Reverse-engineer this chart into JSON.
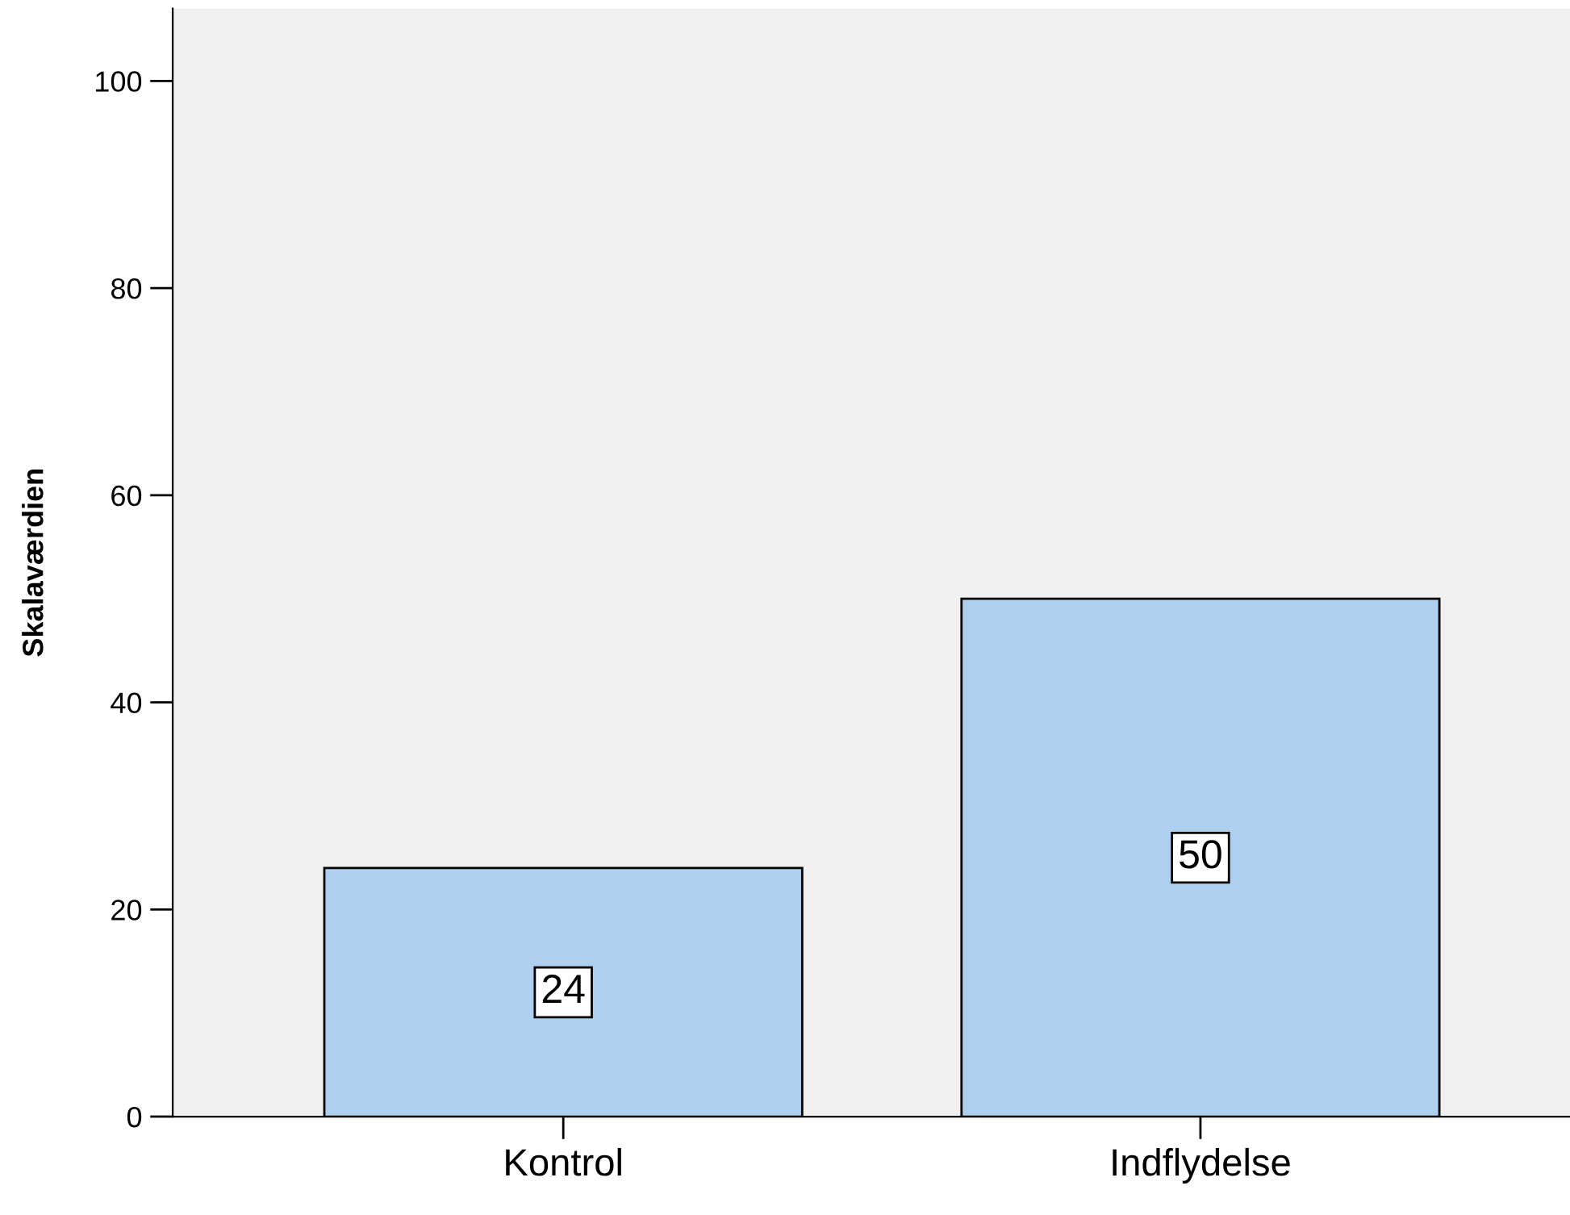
{
  "chart_data": {
    "type": "bar",
    "ylabel": "Skalaværdien",
    "categories": [
      "Kontrol",
      "Indflydelse"
    ],
    "values": [
      24,
      50
    ],
    "color": "#aed0ee",
    "ylim": [
      0,
      107
    ],
    "yticks": [
      0,
      20,
      40,
      60,
      80,
      100
    ],
    "grid": false,
    "data_labels": true
  }
}
